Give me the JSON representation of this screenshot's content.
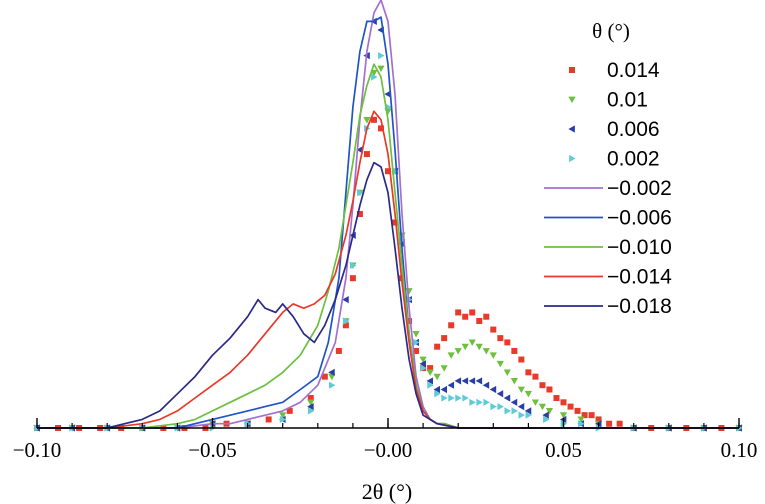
{
  "chart_data": {
    "type": "line",
    "title": "",
    "xlabel": "2θ (°)",
    "ylabel": "",
    "xlim": [
      -0.1,
      0.1
    ],
    "ylim": [
      0,
      1.0
    ],
    "xticks": [
      -0.1,
      -0.05,
      0.0,
      0.05,
      0.1
    ],
    "xtick_labels": [
      "−0.10",
      "−0.05",
      "−0.00",
      "0.05",
      "0.10"
    ],
    "grid": false,
    "legend": {
      "title": "θ (°)",
      "placement": "top-right"
    },
    "series": [
      {
        "name": "0.014",
        "color": "#e8392a",
        "marker": "square",
        "style": "markers",
        "x": [
          -0.1,
          -0.094,
          -0.088,
          -0.082,
          -0.076,
          -0.07,
          -0.064,
          -0.058,
          -0.052,
          -0.046,
          -0.04,
          -0.034,
          -0.028,
          -0.022,
          -0.018,
          -0.014,
          -0.012,
          -0.01,
          -0.008,
          -0.006,
          -0.004,
          -0.002,
          0.0,
          0.002,
          0.004,
          0.006,
          0.008,
          0.01,
          0.012,
          0.014,
          0.016,
          0.018,
          0.02,
          0.022,
          0.024,
          0.026,
          0.028,
          0.03,
          0.032,
          0.034,
          0.036,
          0.038,
          0.04,
          0.042,
          0.044,
          0.046,
          0.048,
          0.05,
          0.052,
          0.054,
          0.056,
          0.058,
          0.06,
          0.063,
          0.066,
          0.07,
          0.075,
          0.08,
          0.085,
          0.09,
          0.095,
          0.1
        ],
        "y": [
          0.0,
          0.0,
          0.0,
          0.0,
          0.0,
          0.0,
          0.0,
          0.0,
          0.0,
          0.01,
          0.01,
          0.02,
          0.04,
          0.07,
          0.12,
          0.18,
          0.24,
          0.35,
          0.5,
          0.64,
          0.72,
          0.7,
          0.6,
          0.48,
          0.35,
          0.25,
          0.18,
          0.14,
          0.14,
          0.19,
          0.21,
          0.24,
          0.27,
          0.26,
          0.27,
          0.25,
          0.26,
          0.23,
          0.21,
          0.2,
          0.18,
          0.16,
          0.13,
          0.12,
          0.1,
          0.09,
          0.07,
          0.06,
          0.05,
          0.04,
          0.03,
          0.03,
          0.02,
          0.01,
          0.01,
          0.0,
          0.0,
          0.0,
          0.0,
          0.0,
          0.0,
          0.0
        ]
      },
      {
        "name": "0.01",
        "color": "#6dbf3e",
        "marker": "triangle-down",
        "style": "markers",
        "x": [
          -0.1,
          -0.09,
          -0.08,
          -0.07,
          -0.06,
          -0.05,
          -0.04,
          -0.03,
          -0.022,
          -0.016,
          -0.012,
          -0.01,
          -0.008,
          -0.006,
          -0.004,
          -0.002,
          0.0,
          0.002,
          0.004,
          0.006,
          0.008,
          0.01,
          0.012,
          0.014,
          0.016,
          0.018,
          0.02,
          0.022,
          0.024,
          0.026,
          0.028,
          0.03,
          0.032,
          0.034,
          0.036,
          0.038,
          0.04,
          0.042,
          0.044,
          0.046,
          0.05,
          0.055,
          0.06,
          0.07,
          0.08,
          0.09,
          0.1
        ],
        "y": [
          0.0,
          0.0,
          0.0,
          0.0,
          0.0,
          0.01,
          0.01,
          0.03,
          0.06,
          0.12,
          0.25,
          0.38,
          0.55,
          0.72,
          0.83,
          0.84,
          0.74,
          0.6,
          0.45,
          0.32,
          0.22,
          0.16,
          0.13,
          0.12,
          0.14,
          0.17,
          0.18,
          0.19,
          0.2,
          0.19,
          0.18,
          0.17,
          0.15,
          0.13,
          0.11,
          0.09,
          0.08,
          0.06,
          0.05,
          0.04,
          0.03,
          0.02,
          0.01,
          0.0,
          0.0,
          0.0,
          0.0
        ]
      },
      {
        "name": "0.006",
        "color": "#2a3ea8",
        "marker": "triangle-left",
        "style": "markers",
        "x": [
          -0.1,
          -0.09,
          -0.08,
          -0.07,
          -0.06,
          -0.05,
          -0.04,
          -0.03,
          -0.022,
          -0.016,
          -0.012,
          -0.01,
          -0.008,
          -0.006,
          -0.004,
          -0.002,
          0.0,
          0.002,
          0.004,
          0.006,
          0.008,
          0.01,
          0.012,
          0.014,
          0.016,
          0.018,
          0.02,
          0.022,
          0.024,
          0.026,
          0.028,
          0.03,
          0.032,
          0.034,
          0.036,
          0.038,
          0.04,
          0.045,
          0.05,
          0.055,
          0.06,
          0.07,
          0.08,
          0.09,
          0.1
        ],
        "y": [
          0.0,
          0.0,
          0.0,
          0.0,
          0.0,
          0.01,
          0.01,
          0.02,
          0.05,
          0.13,
          0.3,
          0.45,
          0.65,
          0.87,
          0.95,
          0.93,
          0.78,
          0.6,
          0.43,
          0.3,
          0.2,
          0.15,
          0.11,
          0.09,
          0.09,
          0.1,
          0.11,
          0.11,
          0.11,
          0.11,
          0.1,
          0.09,
          0.08,
          0.07,
          0.06,
          0.05,
          0.04,
          0.03,
          0.02,
          0.01,
          0.01,
          0.0,
          0.0,
          0.0,
          0.0
        ]
      },
      {
        "name": "0.002",
        "color": "#5fcbd6",
        "marker": "triangle-right",
        "style": "markers",
        "x": [
          -0.1,
          -0.09,
          -0.08,
          -0.07,
          -0.06,
          -0.05,
          -0.04,
          -0.03,
          -0.022,
          -0.016,
          -0.012,
          -0.01,
          -0.008,
          -0.006,
          -0.004,
          -0.002,
          0.0,
          0.002,
          0.004,
          0.006,
          0.008,
          0.01,
          0.012,
          0.014,
          0.016,
          0.018,
          0.02,
          0.022,
          0.024,
          0.026,
          0.028,
          0.03,
          0.032,
          0.034,
          0.036,
          0.038,
          0.04,
          0.045,
          0.05,
          0.055,
          0.06,
          0.07,
          0.08,
          0.09,
          0.1
        ],
        "y": [
          0.0,
          0.0,
          0.0,
          0.0,
          0.0,
          0.0,
          0.01,
          0.02,
          0.04,
          0.1,
          0.25,
          0.38,
          0.55,
          0.7,
          0.82,
          0.87,
          0.75,
          0.6,
          0.44,
          0.3,
          0.2,
          0.14,
          0.1,
          0.08,
          0.07,
          0.07,
          0.07,
          0.07,
          0.06,
          0.06,
          0.06,
          0.05,
          0.05,
          0.04,
          0.04,
          0.03,
          0.03,
          0.02,
          0.01,
          0.01,
          0.0,
          0.0,
          0.0,
          0.0,
          0.0
        ]
      },
      {
        "name": "−0.002",
        "color": "#a56fcf",
        "marker": "none",
        "style": "line",
        "x": [
          -0.1,
          -0.08,
          -0.07,
          -0.06,
          -0.05,
          -0.045,
          -0.04,
          -0.035,
          -0.03,
          -0.025,
          -0.02,
          -0.015,
          -0.012,
          -0.01,
          -0.008,
          -0.006,
          -0.004,
          -0.002,
          0.0,
          0.002,
          0.004,
          0.006,
          0.008,
          0.01,
          0.012,
          0.014,
          0.016,
          0.02,
          0.03,
          0.04,
          0.05,
          0.06,
          0.08,
          0.1
        ],
        "y": [
          0.0,
          0.0,
          0.0,
          0.0,
          0.01,
          0.01,
          0.02,
          0.03,
          0.04,
          0.06,
          0.1,
          0.2,
          0.35,
          0.52,
          0.72,
          0.88,
          0.97,
          1.0,
          0.95,
          0.78,
          0.5,
          0.28,
          0.12,
          0.05,
          0.02,
          0.01,
          0.01,
          0.0,
          0.0,
          0.0,
          0.0,
          0.0,
          0.0,
          0.0
        ]
      },
      {
        "name": "−0.006",
        "color": "#1f55c4",
        "marker": "none",
        "style": "line",
        "x": [
          -0.1,
          -0.08,
          -0.07,
          -0.06,
          -0.055,
          -0.05,
          -0.045,
          -0.04,
          -0.035,
          -0.03,
          -0.025,
          -0.02,
          -0.017,
          -0.014,
          -0.012,
          -0.01,
          -0.008,
          -0.006,
          -0.004,
          -0.002,
          0.0,
          0.002,
          0.004,
          0.006,
          0.008,
          0.01,
          0.012,
          0.014,
          0.016,
          0.02,
          0.03,
          0.04,
          0.05,
          0.06,
          0.08,
          0.1
        ],
        "y": [
          0.0,
          0.0,
          0.0,
          0.0,
          0.01,
          0.02,
          0.03,
          0.04,
          0.05,
          0.06,
          0.09,
          0.12,
          0.2,
          0.35,
          0.55,
          0.75,
          0.88,
          0.95,
          0.95,
          0.96,
          0.85,
          0.65,
          0.42,
          0.22,
          0.1,
          0.04,
          0.02,
          0.01,
          0.01,
          0.0,
          0.0,
          0.0,
          0.0,
          0.0,
          0.0,
          0.0
        ]
      },
      {
        "name": "−0.010",
        "color": "#6dbf3e",
        "marker": "none",
        "style": "line",
        "x": [
          -0.1,
          -0.08,
          -0.07,
          -0.06,
          -0.055,
          -0.05,
          -0.045,
          -0.04,
          -0.035,
          -0.03,
          -0.025,
          -0.02,
          -0.017,
          -0.014,
          -0.012,
          -0.01,
          -0.008,
          -0.006,
          -0.004,
          -0.002,
          0.0,
          0.002,
          0.004,
          0.006,
          0.008,
          0.01,
          0.012,
          0.014,
          0.016,
          0.02,
          0.03,
          0.04,
          0.05,
          0.06,
          0.08,
          0.1
        ],
        "y": [
          0.0,
          0.0,
          0.0,
          0.01,
          0.02,
          0.04,
          0.06,
          0.08,
          0.1,
          0.13,
          0.17,
          0.24,
          0.32,
          0.42,
          0.52,
          0.62,
          0.73,
          0.8,
          0.85,
          0.82,
          0.72,
          0.55,
          0.38,
          0.22,
          0.1,
          0.04,
          0.02,
          0.01,
          0.01,
          0.0,
          0.0,
          0.0,
          0.0,
          0.0,
          0.0,
          0.0
        ]
      },
      {
        "name": "−0.014",
        "color": "#e8392a",
        "marker": "none",
        "style": "line",
        "x": [
          -0.1,
          -0.08,
          -0.07,
          -0.065,
          -0.06,
          -0.055,
          -0.05,
          -0.045,
          -0.04,
          -0.035,
          -0.03,
          -0.027,
          -0.024,
          -0.021,
          -0.018,
          -0.015,
          -0.012,
          -0.01,
          -0.008,
          -0.006,
          -0.004,
          -0.002,
          0.0,
          0.002,
          0.004,
          0.006,
          0.008,
          0.01,
          0.012,
          0.014,
          0.02,
          0.03,
          0.04,
          0.05,
          0.06,
          0.08,
          0.1
        ],
        "y": [
          0.0,
          0.0,
          0.01,
          0.02,
          0.04,
          0.07,
          0.1,
          0.13,
          0.17,
          0.22,
          0.27,
          0.29,
          0.28,
          0.29,
          0.31,
          0.36,
          0.45,
          0.53,
          0.62,
          0.7,
          0.74,
          0.72,
          0.64,
          0.5,
          0.34,
          0.2,
          0.09,
          0.04,
          0.02,
          0.01,
          0.0,
          0.0,
          0.0,
          0.0,
          0.0,
          0.0,
          0.0
        ]
      },
      {
        "name": "−0.018",
        "color": "#2a2a8a",
        "marker": "none",
        "style": "line",
        "x": [
          -0.1,
          -0.08,
          -0.07,
          -0.065,
          -0.06,
          -0.055,
          -0.05,
          -0.045,
          -0.04,
          -0.037,
          -0.035,
          -0.032,
          -0.03,
          -0.027,
          -0.024,
          -0.021,
          -0.018,
          -0.015,
          -0.012,
          -0.01,
          -0.008,
          -0.006,
          -0.004,
          -0.002,
          0.0,
          0.002,
          0.004,
          0.006,
          0.008,
          0.01,
          0.012,
          0.014,
          0.02,
          0.03,
          0.04,
          0.05,
          0.06,
          0.08,
          0.1
        ],
        "y": [
          0.0,
          0.0,
          0.02,
          0.04,
          0.08,
          0.12,
          0.17,
          0.21,
          0.26,
          0.3,
          0.28,
          0.27,
          0.29,
          0.26,
          0.22,
          0.2,
          0.24,
          0.3,
          0.38,
          0.45,
          0.52,
          0.58,
          0.62,
          0.61,
          0.55,
          0.42,
          0.28,
          0.16,
          0.08,
          0.03,
          0.02,
          0.01,
          0.0,
          0.0,
          0.0,
          0.0,
          0.0,
          0.0,
          0.0
        ]
      }
    ]
  }
}
